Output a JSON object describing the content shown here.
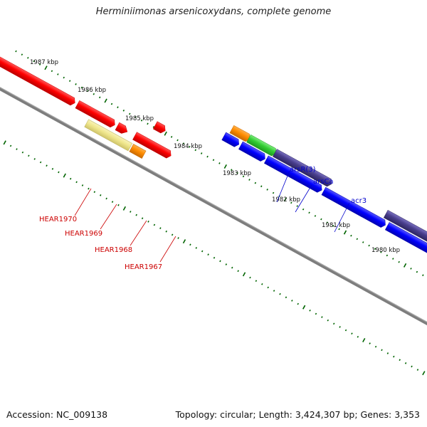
{
  "title": "Herminiimonas arsenicoxydans, complete genome",
  "footer": {
    "accession": "Accession: NC_009138",
    "topology": "Topology: circular; Length: 3,424,307 bp; Genes: 3,353"
  },
  "ticks": [
    "1987 kbp",
    "1986 kbp",
    "1985 kbp",
    "1984 kbp",
    "1983 kbp",
    "1982 kbp",
    "1981 kbp",
    "1980 kbp"
  ],
  "genes": {
    "HEAR1970": "HEAR1970",
    "HEAR1969": "HEAR1969",
    "HEAR1968": "HEAR1968",
    "HEAR1967": "HEAR1967",
    "arsR3": "arsR(3)",
    "arsCa": "arsCa",
    "acr3": "acr3"
  },
  "colors": {
    "red": "#ff0000",
    "yellow": "#efe68c",
    "orange": "#ff8c00",
    "green": "#32cd32",
    "slate": "#483d8b",
    "blue": "#0000ff",
    "backbone": "#7d7d7d",
    "tick": "#006400"
  }
}
